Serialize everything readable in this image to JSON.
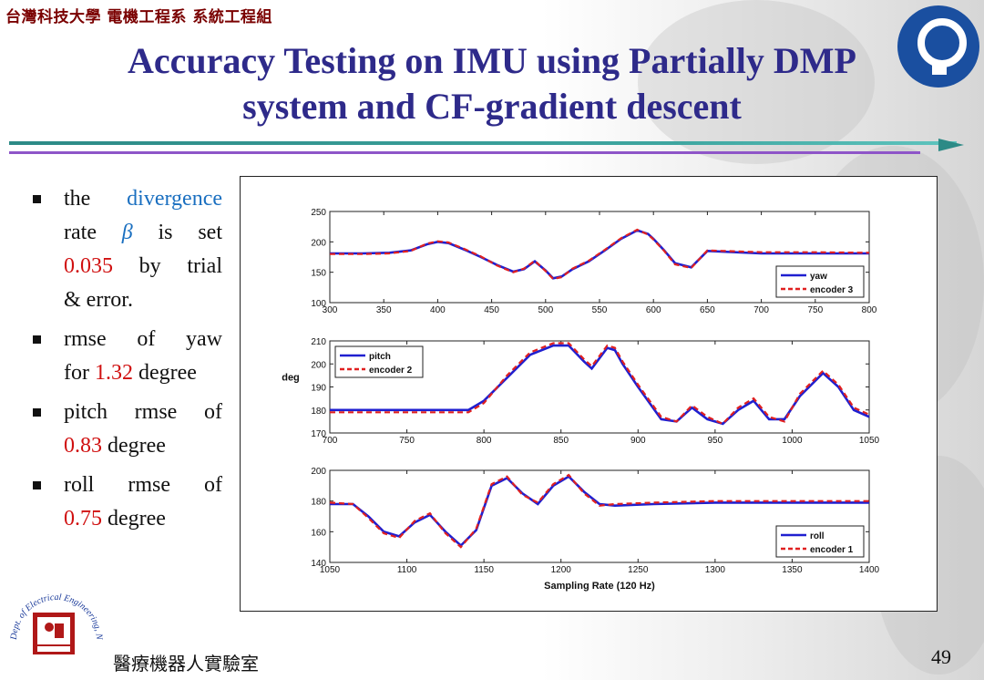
{
  "header": {
    "department": "台灣科技大學 電機工程系 系統工程組",
    "title_line1": "Accuracy Testing on IMU using Partially DMP",
    "title_line2": "system and CF-gradient descent"
  },
  "bullets": [
    {
      "segments": [
        [
          "the ",
          "",
          false
        ],
        [
          "divergence",
          "blue",
          false
        ]
      ]
    },
    {
      "segments": [
        [
          "rate ",
          "",
          false
        ],
        [
          "β",
          "blue",
          true
        ],
        [
          " is set",
          "",
          false
        ]
      ]
    },
    {
      "segments": [
        [
          "0.035",
          "red",
          false
        ],
        [
          " by trial",
          "",
          false
        ]
      ]
    },
    {
      "segments": [
        [
          "& error.",
          "",
          false
        ]
      ]
    }
  ],
  "text": {
    "b1_l1_a": "the",
    "b1_l1_b": "divergence",
    "b1_l2_a": "rate",
    "b1_l2_beta": "β",
    "b1_l2_b": "is",
    "b1_l2_c": "set",
    "b1_l3_val": "0.035",
    "b1_l3_b": "by",
    "b1_l3_c": "trial",
    "b1_l4": "& error.",
    "b2_l1_a": "rmse",
    "b2_l1_b": "of",
    "b2_l1_c": "yaw",
    "b2_l2_a": "for",
    "b2_l2_val": "1.32",
    "b2_l2_b": "degree",
    "b3_l1_a": "pitch",
    "b3_l1_b": "rmse",
    "b3_l1_c": "of",
    "b3_l2_val": "0.83",
    "b3_l2_b": "degree",
    "b4_l1_a": "roll",
    "b4_l1_b": "rmse",
    "b4_l1_c": "of",
    "b4_l2_val": "0.75",
    "b4_l2_b": "degree"
  },
  "colors": {
    "title": "#2e2a8a",
    "accent_blue": "#1a6fc0",
    "accent_red": "#d01010",
    "series_estimate": "#1f1fd0",
    "series_encoder": "#e02020"
  },
  "icons": {
    "top_right": "university-emblem-icon",
    "bottom_left": "lab-seal-icon"
  },
  "footer": {
    "lab_name": "醫療機器人實驗室",
    "page_number": "49",
    "seal_text": "Dept. of Electrical Engineering, National Taiwan Univ. of Sci. and Tech."
  },
  "chart_data": [
    {
      "type": "line",
      "xlim": [
        300,
        800
      ],
      "ylim": [
        100,
        250
      ],
      "xticks": [
        300,
        350,
        400,
        450,
        500,
        550,
        600,
        650,
        700,
        750,
        800
      ],
      "yticks": [
        100,
        150,
        200,
        250
      ],
      "legend_position": "bottom-right",
      "series": [
        {
          "name": "yaw",
          "style": "solid",
          "x": [
            300,
            330,
            355,
            375,
            390,
            400,
            410,
            425,
            440,
            455,
            470,
            480,
            490,
            500,
            507,
            515,
            525,
            540,
            555,
            570,
            585,
            595,
            600,
            610,
            620,
            635,
            650,
            700,
            750,
            800
          ],
          "values": [
            181,
            181,
            182,
            186,
            196,
            200,
            198,
            187,
            175,
            162,
            151,
            155,
            168,
            153,
            140,
            143,
            155,
            168,
            186,
            205,
            219,
            213,
            205,
            186,
            165,
            158,
            185,
            181,
            181,
            181
          ]
        },
        {
          "name": "encoder 3",
          "style": "dashed",
          "x": [
            300,
            330,
            355,
            375,
            390,
            400,
            410,
            425,
            440,
            455,
            470,
            480,
            490,
            500,
            507,
            515,
            525,
            540,
            555,
            570,
            585,
            595,
            600,
            610,
            620,
            635,
            650,
            700,
            750,
            800
          ],
          "values": [
            180,
            180,
            181,
            185,
            197,
            201,
            199,
            188,
            176,
            161,
            150,
            156,
            169,
            152,
            139,
            142,
            156,
            169,
            187,
            206,
            220,
            212,
            204,
            185,
            163,
            157,
            186,
            183,
            183,
            182
          ]
        }
      ]
    },
    {
      "type": "line",
      "xlim": [
        700,
        1050
      ],
      "ylim": [
        170,
        210
      ],
      "xticks": [
        700,
        750,
        800,
        850,
        900,
        950,
        1000,
        1050
      ],
      "yticks": [
        170,
        180,
        190,
        200,
        210
      ],
      "ylabel": "deg",
      "legend_position": "top-left",
      "series": [
        {
          "name": "pitch",
          "style": "solid",
          "x": [
            700,
            720,
            760,
            790,
            800,
            815,
            830,
            845,
            855,
            865,
            870,
            880,
            885,
            890,
            900,
            915,
            925,
            935,
            945,
            955,
            965,
            975,
            985,
            995,
            1005,
            1020,
            1030,
            1040,
            1050
          ],
          "values": [
            180,
            180,
            180,
            180,
            184,
            194,
            204,
            208,
            208,
            201,
            198,
            207,
            206,
            200,
            190,
            176,
            175,
            181,
            176,
            174,
            180,
            184,
            176,
            176,
            186,
            196,
            190,
            180,
            177
          ]
        },
        {
          "name": "encoder 2",
          "style": "dashed",
          "x": [
            700,
            720,
            760,
            790,
            800,
            815,
            830,
            845,
            855,
            865,
            870,
            880,
            885,
            890,
            900,
            915,
            925,
            935,
            945,
            955,
            965,
            975,
            985,
            995,
            1005,
            1020,
            1030,
            1040,
            1050
          ],
          "values": [
            179,
            179,
            179,
            179,
            183,
            195,
            205,
            209,
            209,
            202,
            199,
            208,
            207,
            201,
            191,
            177,
            175,
            182,
            177,
            174,
            181,
            185,
            177,
            175,
            187,
            197,
            191,
            181,
            178
          ]
        }
      ]
    },
    {
      "type": "line",
      "xlim": [
        1050,
        1400
      ],
      "ylim": [
        140,
        200
      ],
      "xticks": [
        1050,
        1100,
        1150,
        1200,
        1250,
        1300,
        1350,
        1400
      ],
      "yticks": [
        140,
        160,
        180,
        200
      ],
      "xlabel": "Sampling Rate (120 Hz)",
      "legend_position": "bottom-right",
      "series": [
        {
          "name": "roll",
          "style": "solid",
          "x": [
            1050,
            1065,
            1075,
            1085,
            1095,
            1105,
            1115,
            1125,
            1135,
            1145,
            1155,
            1165,
            1175,
            1185,
            1195,
            1205,
            1215,
            1225,
            1235,
            1260,
            1300,
            1350,
            1400
          ],
          "values": [
            178,
            178,
            170,
            160,
            157,
            166,
            171,
            160,
            151,
            161,
            190,
            195,
            185,
            178,
            190,
            196,
            186,
            178,
            177,
            178,
            179,
            179,
            179
          ]
        },
        {
          "name": "encoder 1",
          "style": "dashed",
          "x": [
            1050,
            1065,
            1075,
            1085,
            1095,
            1105,
            1115,
            1125,
            1135,
            1145,
            1155,
            1165,
            1175,
            1185,
            1195,
            1205,
            1215,
            1225,
            1235,
            1260,
            1300,
            1350,
            1400
          ],
          "values": [
            179,
            178,
            169,
            159,
            156,
            167,
            172,
            159,
            150,
            162,
            191,
            196,
            184,
            179,
            191,
            197,
            185,
            177,
            178,
            179,
            180,
            180,
            180
          ]
        }
      ]
    }
  ]
}
